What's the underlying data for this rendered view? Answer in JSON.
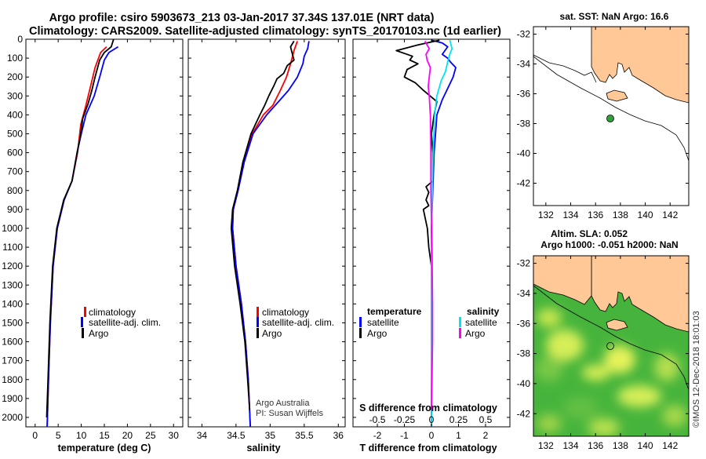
{
  "colors": {
    "red": "#ff0000",
    "blue": "#0000ff",
    "black": "#000000",
    "cyan": "#00e5ee",
    "magenta": "#ff00ff",
    "land": "#ffc896",
    "green": "#2fa13a"
  },
  "header": {
    "title_line1": "Argo profile: csiro 5903673_213 03-Jan-2017 37.34S 137.01E (NRT data)",
    "title_line2": "Climatology: CARS2009. Satellite-adjusted climatology: synTS_20170103.nc (1d earlier)"
  },
  "chart_data": [
    {
      "type": "line",
      "name": "temperature-profile",
      "xlabel": "temperature (deg C)",
      "ylabel": "",
      "xlim": [
        -2,
        32
      ],
      "ylim": [
        2050,
        0
      ],
      "x_ticks": [
        "0",
        "5",
        "10",
        "15",
        "20",
        "25",
        "30"
      ],
      "y_ticks": [
        "0",
        "100",
        "200",
        "300",
        "400",
        "500",
        "600",
        "700",
        "800",
        "900",
        "1000",
        "1100",
        "1200",
        "1300",
        "1400",
        "1500",
        "1600",
        "1700",
        "1800",
        "1900",
        "2000"
      ],
      "legend": [
        "climatology",
        "satellite-adj. clim.",
        "Argo"
      ],
      "series": [
        {
          "name": "climatology",
          "color": "red",
          "points": [
            [
              15.5,
              40
            ],
            [
              14.2,
              70
            ],
            [
              13.0,
              150
            ],
            [
              12.0,
              250
            ],
            [
              11.0,
              350
            ],
            [
              9.9,
              450
            ],
            [
              9.2,
              600
            ],
            [
              8.0,
              750
            ],
            [
              6.3,
              850
            ],
            [
              4.8,
              1000
            ],
            [
              3.9,
              1200
            ],
            [
              3.3,
              1500
            ],
            [
              2.9,
              1800
            ],
            [
              2.6,
              2050
            ]
          ]
        },
        {
          "name": "satellite-adj. clim.",
          "color": "blue",
          "points": [
            [
              18.0,
              40
            ],
            [
              16.0,
              70
            ],
            [
              15.0,
              110
            ],
            [
              14.0,
              200
            ],
            [
              12.8,
              300
            ],
            [
              11.0,
              400
            ],
            [
              10.0,
              500
            ],
            [
              9.1,
              600
            ],
            [
              8.0,
              750
            ],
            [
              6.3,
              850
            ],
            [
              4.8,
              1000
            ],
            [
              3.9,
              1200
            ],
            [
              3.3,
              1500
            ],
            [
              2.9,
              1800
            ],
            [
              2.6,
              2050
            ]
          ]
        },
        {
          "name": "Argo",
          "color": "black",
          "points": [
            [
              17.0,
              0
            ],
            [
              16.5,
              40
            ],
            [
              15.0,
              70
            ],
            [
              14.0,
              110
            ],
            [
              13.0,
              200
            ],
            [
              12.3,
              270
            ],
            [
              11.5,
              340
            ],
            [
              10.3,
              420
            ],
            [
              9.9,
              500
            ],
            [
              9.1,
              600
            ],
            [
              8.0,
              750
            ],
            [
              6.2,
              850
            ],
            [
              4.7,
              1000
            ],
            [
              3.8,
              1200
            ],
            [
              3.2,
              1500
            ],
            [
              2.8,
              1800
            ],
            [
              2.5,
              2000
            ]
          ]
        }
      ]
    },
    {
      "type": "line",
      "name": "salinity-profile",
      "xlabel": "salinity",
      "xlim": [
        33.8,
        36.1
      ],
      "ylim": [
        2050,
        0
      ],
      "x_ticks": [
        "34",
        "34.5",
        "35",
        "35.5",
        "36"
      ],
      "legend": [
        "climatology",
        "satellite-adj. clim.",
        "Argo"
      ],
      "credit_line1": "Argo Australia",
      "credit_line2": "PI: Susan Wijffels",
      "series": [
        {
          "name": "climatology",
          "color": "red",
          "points": [
            [
              35.4,
              10
            ],
            [
              35.35,
              60
            ],
            [
              35.3,
              130
            ],
            [
              35.24,
              200
            ],
            [
              35.15,
              270
            ],
            [
              35.04,
              350
            ],
            [
              34.9,
              400
            ],
            [
              34.74,
              500
            ],
            [
              34.62,
              650
            ],
            [
              34.53,
              800
            ],
            [
              34.46,
              900
            ],
            [
              34.45,
              1000
            ],
            [
              34.5,
              1200
            ],
            [
              34.58,
              1400
            ],
            [
              34.64,
              1600
            ],
            [
              34.68,
              1800
            ],
            [
              34.71,
              2050
            ]
          ]
        },
        {
          "name": "satellite-adj. clim.",
          "color": "blue",
          "points": [
            [
              35.57,
              10
            ],
            [
              35.55,
              50
            ],
            [
              35.5,
              90
            ],
            [
              35.48,
              130
            ],
            [
              35.4,
              200
            ],
            [
              35.27,
              270
            ],
            [
              35.1,
              340
            ],
            [
              34.95,
              400
            ],
            [
              34.75,
              500
            ],
            [
              34.62,
              650
            ],
            [
              34.53,
              800
            ],
            [
              34.46,
              900
            ],
            [
              34.45,
              1000
            ],
            [
              34.5,
              1200
            ],
            [
              34.58,
              1400
            ],
            [
              34.64,
              1600
            ],
            [
              34.68,
              1800
            ],
            [
              34.71,
              2050
            ]
          ]
        },
        {
          "name": "Argo",
          "color": "black",
          "points": [
            [
              35.35,
              10
            ],
            [
              35.3,
              40
            ],
            [
              35.32,
              70
            ],
            [
              35.35,
              110
            ],
            [
              35.25,
              140
            ],
            [
              35.2,
              180
            ],
            [
              35.1,
              210
            ],
            [
              35.05,
              250
            ],
            [
              34.98,
              300
            ],
            [
              34.92,
              350
            ],
            [
              34.85,
              400
            ],
            [
              34.72,
              500
            ],
            [
              34.6,
              650
            ],
            [
              34.52,
              800
            ],
            [
              34.45,
              900
            ],
            [
              34.43,
              1000
            ],
            [
              34.48,
              1200
            ],
            [
              34.56,
              1400
            ],
            [
              34.63,
              1600
            ],
            [
              34.67,
              1800
            ],
            [
              34.7,
              1960
            ]
          ]
        }
      ]
    },
    {
      "type": "line",
      "name": "difference-profile",
      "xlabel": "T difference from climatology",
      "xlabel_top": "S difference from climatology",
      "xlim": [
        -2.9,
        2.9
      ],
      "s_xlim": [
        -0.725,
        0.725
      ],
      "ylim": [
        2050,
        0
      ],
      "x_ticks": [
        "-2",
        "-1",
        "0",
        "1",
        "2"
      ],
      "s_ticks": [
        "-0.5",
        "-0.25",
        "0",
        "0.25",
        "0.5"
      ],
      "legend_left_title": "temperature",
      "legend_left": [
        "satellite",
        "Argo"
      ],
      "legend_right_title": "salinity",
      "legend_right": [
        "satellite",
        "Argo"
      ],
      "series": [
        {
          "name": "T satellite",
          "color": "blue",
          "points": [
            [
              0.0,
              5
            ],
            [
              0.4,
              20
            ],
            [
              0.6,
              40
            ],
            [
              0.5,
              60
            ],
            [
              0.4,
              80
            ],
            [
              0.6,
              100
            ],
            [
              0.7,
              120
            ],
            [
              0.9,
              150
            ],
            [
              0.8,
              200
            ],
            [
              0.6,
              260
            ],
            [
              0.4,
              320
            ],
            [
              0.2,
              400
            ],
            [
              0.15,
              500
            ],
            [
              0.1,
              600
            ],
            [
              0.05,
              800
            ],
            [
              0.0,
              1000
            ],
            [
              0.0,
              2050
            ]
          ]
        },
        {
          "name": "T Argo",
          "color": "black",
          "points": [
            [
              0.3,
              5
            ],
            [
              -0.5,
              30
            ],
            [
              -1.3,
              60
            ],
            [
              -0.7,
              90
            ],
            [
              -0.8,
              110
            ],
            [
              -0.5,
              130
            ],
            [
              -0.9,
              160
            ],
            [
              -1.0,
              200
            ],
            [
              -0.6,
              230
            ],
            [
              -0.3,
              270
            ],
            [
              0.2,
              330
            ],
            [
              0.1,
              400
            ],
            [
              0.0,
              500
            ],
            [
              0.05,
              600
            ],
            [
              0.05,
              750
            ],
            [
              -0.2,
              780
            ],
            [
              -0.1,
              810
            ],
            [
              -0.2,
              850
            ],
            [
              -0.1,
              880
            ],
            [
              -0.3,
              900
            ],
            [
              -0.15,
              1000
            ],
            [
              -0.1,
              1100
            ],
            [
              0.0,
              1200
            ],
            [
              0.0,
              1990
            ]
          ]
        },
        {
          "name": "S satellite",
          "color": "cyan",
          "points": [
            [
              0.17,
              5
            ],
            [
              0.19,
              50
            ],
            [
              0.17,
              80
            ],
            [
              0.15,
              120
            ],
            [
              0.13,
              170
            ],
            [
              0.09,
              220
            ],
            [
              0.05,
              300
            ],
            [
              0.03,
              400
            ],
            [
              0.015,
              600
            ],
            [
              0.005,
              900
            ],
            [
              0.0,
              1100
            ],
            [
              0.0,
              2050
            ]
          ]
        },
        {
          "name": "S Argo",
          "color": "magenta",
          "points": [
            [
              -0.06,
              10
            ],
            [
              -0.02,
              50
            ],
            [
              -0.05,
              80
            ],
            [
              -0.04,
              110
            ],
            [
              -0.01,
              150
            ],
            [
              -0.02,
              200
            ],
            [
              -0.03,
              250
            ],
            [
              -0.02,
              300
            ],
            [
              -0.01,
              400
            ],
            [
              -0.005,
              600
            ],
            [
              -0.005,
              800
            ],
            [
              0.005,
              1100
            ],
            [
              0.01,
              1400
            ],
            [
              0.01,
              1600
            ],
            [
              0.005,
              1800
            ],
            [
              0.0,
              1960
            ]
          ]
        }
      ]
    },
    {
      "type": "map",
      "name": "sst-map",
      "title": "sat. SST: NaN Argo: 16.6",
      "lon_range": [
        131,
        143.5
      ],
      "lat_range": [
        -43.5,
        -31.5
      ],
      "lon_ticks": [
        "132",
        "134",
        "136",
        "138",
        "140",
        "142"
      ],
      "lat_ticks": [
        "-32",
        "-34",
        "-36",
        "-38",
        "-40",
        "-42"
      ],
      "argo_position": {
        "lon": 137.01,
        "lat": -37.34
      }
    },
    {
      "type": "map",
      "name": "sla-map",
      "title_line1": "Altim. SLA: 0.052",
      "title_line2": "Argo h1000: -0.051 h2000: NaN",
      "lon_range": [
        131,
        143.5
      ],
      "lat_range": [
        -43.5,
        -31.5
      ],
      "lon_ticks": [
        "132",
        "134",
        "136",
        "138",
        "140",
        "142"
      ],
      "lat_ticks": [
        "-32",
        "-34",
        "-36",
        "-38",
        "-40",
        "-42"
      ],
      "argo_position": {
        "lon": 137.01,
        "lat": -37.34
      }
    }
  ],
  "footer": {
    "vertical_credit": "©IMOS 12-Dec-2018 18:01:03"
  }
}
